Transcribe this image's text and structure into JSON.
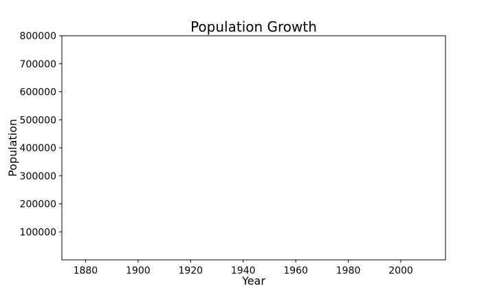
{
  "chart_data": {
    "type": "line",
    "title": "Population Growth",
    "xlabel": "Year",
    "ylabel": "Population",
    "xlim": [
      1871,
      2017
    ],
    "ylim": [
      0,
      800000
    ],
    "x_ticks": [
      1880,
      1900,
      1920,
      1940,
      1960,
      1980,
      2000
    ],
    "y_ticks": [
      100000,
      200000,
      300000,
      400000,
      500000,
      600000,
      700000,
      800000
    ],
    "series": [],
    "grid": false,
    "legend": "none",
    "colors": {
      "axes": "#000000",
      "background": "#ffffff"
    }
  }
}
